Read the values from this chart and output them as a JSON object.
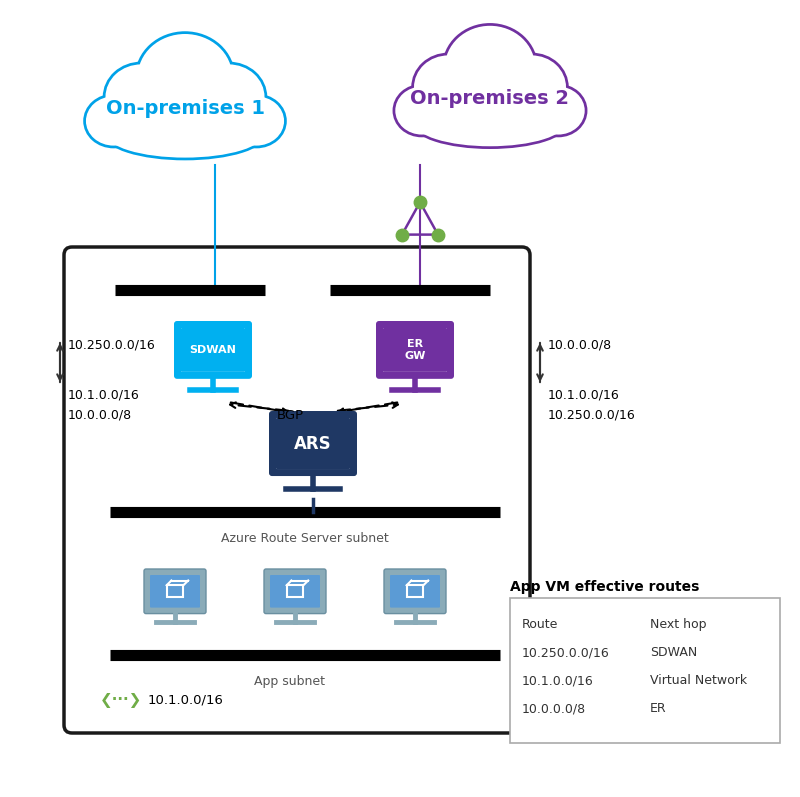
{
  "bg_color": "#ffffff",
  "cloud1_color": "#00a2e8",
  "cloud2_color": "#7030a0",
  "cloud1_label": "On-premises 1",
  "cloud2_label": "On-premises 2",
  "sdwan_color": "#00b0f0",
  "ergw_color": "#7030a0",
  "ars_color": "#1f3864",
  "vm_body_color": "#7ba7c4",
  "vm_screen_color": "#5b9bd5",
  "green_color": "#70ad47",
  "arrow_left_down_label": "10.250.0.0/16",
  "arrow_left_up_label1": "10.1.0.0/16",
  "arrow_left_up_label2": "10.0.0.0/8",
  "arrow_right_down_label": "10.0.0.0/8",
  "arrow_right_up_label1": "10.1.0.0/16",
  "arrow_right_up_label2": "10.250.0.0/16",
  "bgp_label": "BGP",
  "ars_label": "ARS",
  "sdwan_label": "SDWAN",
  "ergw_label": "ER\nGW",
  "ars_subnet_label": "Azure Route Server subnet",
  "app_subnet_label": "App subnet",
  "route_label": "10.1.0.0/16",
  "table_title": "App VM effective routes",
  "table_headers": [
    "Route",
    "Next hop"
  ],
  "table_rows": [
    [
      "10.250.0.0/16",
      "SDWAN"
    ],
    [
      "10.1.0.0/16",
      "Virtual Network"
    ],
    [
      "10.0.0.0/8",
      "ER"
    ]
  ]
}
